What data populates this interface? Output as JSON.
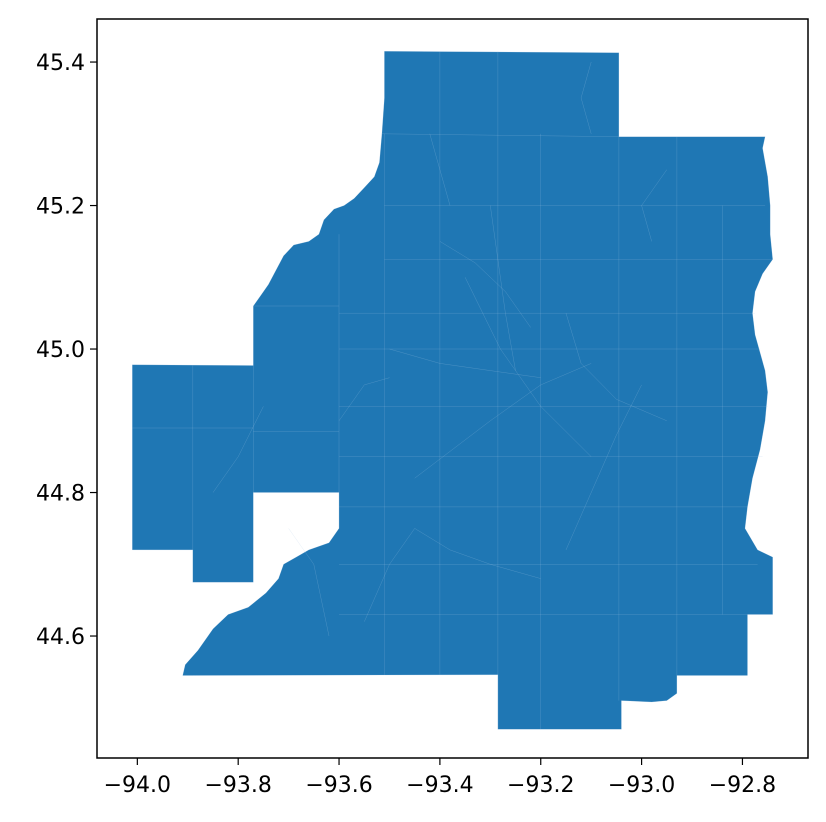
{
  "chart_data": {
    "type": "map",
    "fill_color": "#1f77b4",
    "boundary_color": "#a9c9e6",
    "xlim": [
      -94.08,
      -92.67
    ],
    "ylim": [
      44.43,
      45.46
    ],
    "x_ticks": [
      {
        "value": -94.0,
        "label": "−94.0"
      },
      {
        "value": -93.8,
        "label": "−93.8"
      },
      {
        "value": -93.6,
        "label": "−93.6"
      },
      {
        "value": -93.4,
        "label": "−93.4"
      },
      {
        "value": -93.2,
        "label": "−93.2"
      },
      {
        "value": -93.0,
        "label": "−93.0"
      },
      {
        "value": -92.8,
        "label": "−92.8"
      }
    ],
    "y_ticks": [
      {
        "value": 45.4,
        "label": "45.4"
      },
      {
        "value": 45.2,
        "label": "45.2"
      },
      {
        "value": 45.0,
        "label": "45.0"
      },
      {
        "value": 44.8,
        "label": "44.8"
      },
      {
        "value": 44.6,
        "label": "44.6"
      }
    ],
    "outline": [
      [
        -93.51,
        45.415
      ],
      [
        -93.045,
        45.413
      ],
      [
        -93.045,
        45.296
      ],
      [
        -92.755,
        45.296
      ],
      [
        -92.76,
        45.28
      ],
      [
        -92.75,
        45.24
      ],
      [
        -92.745,
        45.2
      ],
      [
        -92.745,
        45.16
      ],
      [
        -92.74,
        45.125
      ],
      [
        -92.76,
        45.105
      ],
      [
        -92.775,
        45.08
      ],
      [
        -92.78,
        45.05
      ],
      [
        -92.775,
        45.02
      ],
      [
        -92.765,
        44.995
      ],
      [
        -92.755,
        44.97
      ],
      [
        -92.75,
        44.94
      ],
      [
        -92.755,
        44.9
      ],
      [
        -92.765,
        44.86
      ],
      [
        -92.78,
        44.82
      ],
      [
        -92.79,
        44.78
      ],
      [
        -92.795,
        44.75
      ],
      [
        -92.77,
        44.72
      ],
      [
        -92.74,
        44.71
      ],
      [
        -92.74,
        44.63
      ],
      [
        -92.79,
        44.63
      ],
      [
        -92.79,
        44.545
      ],
      [
        -92.93,
        44.545
      ],
      [
        -92.93,
        44.52
      ],
      [
        -92.95,
        44.51
      ],
      [
        -92.98,
        44.508
      ],
      [
        -93.04,
        44.51
      ],
      [
        -93.04,
        44.47
      ],
      [
        -93.285,
        44.47
      ],
      [
        -93.285,
        44.546
      ],
      [
        -93.91,
        44.545
      ],
      [
        -93.905,
        44.56
      ],
      [
        -93.88,
        44.58
      ],
      [
        -93.85,
        44.61
      ],
      [
        -93.82,
        44.63
      ],
      [
        -93.78,
        44.64
      ],
      [
        -93.745,
        44.66
      ],
      [
        -93.72,
        44.68
      ],
      [
        -93.71,
        44.7
      ],
      [
        -93.685,
        44.71
      ],
      [
        -93.66,
        44.72
      ],
      [
        -93.62,
        44.73
      ],
      [
        -93.6,
        44.75
      ],
      [
        -93.6,
        44.8
      ],
      [
        -93.77,
        44.8
      ],
      [
        -93.77,
        44.675
      ],
      [
        -93.89,
        44.675
      ],
      [
        -93.89,
        44.72
      ],
      [
        -94.01,
        44.72
      ],
      [
        -94.01,
        44.978
      ],
      [
        -93.77,
        44.977
      ],
      [
        -93.77,
        45.06
      ],
      [
        -93.755,
        45.075
      ],
      [
        -93.74,
        45.09
      ],
      [
        -93.725,
        45.11
      ],
      [
        -93.71,
        45.13
      ],
      [
        -93.69,
        45.145
      ],
      [
        -93.66,
        45.15
      ],
      [
        -93.64,
        45.16
      ],
      [
        -93.63,
        45.18
      ],
      [
        -93.61,
        45.195
      ],
      [
        -93.59,
        45.2
      ],
      [
        -93.57,
        45.21
      ],
      [
        -93.55,
        45.225
      ],
      [
        -93.53,
        45.24
      ],
      [
        -93.52,
        45.26
      ],
      [
        -93.515,
        45.3
      ],
      [
        -93.51,
        45.35
      ]
    ],
    "inner_lines": [
      [
        [
          -93.77,
          44.8
        ],
        [
          -93.6,
          44.8
        ]
      ],
      [
        [
          -93.77,
          44.8
        ],
        [
          -93.77,
          44.977
        ]
      ],
      [
        [
          -93.89,
          44.72
        ],
        [
          -93.89,
          44.977
        ]
      ],
      [
        [
          -94.01,
          44.89
        ],
        [
          -93.77,
          44.89
        ]
      ],
      [
        [
          -93.77,
          44.885
        ],
        [
          -93.6,
          44.885
        ]
      ],
      [
        [
          -93.6,
          44.9
        ],
        [
          -93.55,
          44.95
        ],
        [
          -93.5,
          44.96
        ]
      ],
      [
        [
          -93.515,
          45.3
        ],
        [
          -93.045,
          45.296
        ]
      ],
      [
        [
          -93.51,
          45.2
        ],
        [
          -92.755,
          45.2
        ]
      ],
      [
        [
          -93.51,
          45.125
        ],
        [
          -92.74,
          45.125
        ]
      ],
      [
        [
          -93.77,
          45.06
        ],
        [
          -93.6,
          45.06
        ]
      ],
      [
        [
          -93.6,
          44.75
        ],
        [
          -93.6,
          45.16
        ]
      ],
      [
        [
          -93.51,
          44.546
        ],
        [
          -93.51,
          45.3
        ]
      ],
      [
        [
          -93.4,
          44.546
        ],
        [
          -93.4,
          45.415
        ]
      ],
      [
        [
          -93.285,
          44.47
        ],
        [
          -93.285,
          45.415
        ]
      ],
      [
        [
          -93.2,
          44.47
        ],
        [
          -93.2,
          45.3
        ]
      ],
      [
        [
          -93.045,
          44.51
        ],
        [
          -93.045,
          45.296
        ]
      ],
      [
        [
          -92.93,
          44.545
        ],
        [
          -92.93,
          45.296
        ]
      ],
      [
        [
          -92.84,
          44.63
        ],
        [
          -92.84,
          45.2
        ]
      ],
      [
        [
          -93.6,
          44.63
        ],
        [
          -92.74,
          44.63
        ]
      ],
      [
        [
          -93.6,
          44.7
        ],
        [
          -92.77,
          44.7
        ]
      ],
      [
        [
          -93.6,
          44.78
        ],
        [
          -92.79,
          44.78
        ]
      ],
      [
        [
          -93.6,
          44.85
        ],
        [
          -92.76,
          44.85
        ]
      ],
      [
        [
          -93.6,
          44.92
        ],
        [
          -92.75,
          44.92
        ]
      ],
      [
        [
          -93.6,
          45.0
        ],
        [
          -92.765,
          45.0
        ]
      ],
      [
        [
          -93.6,
          45.05
        ],
        [
          -92.775,
          45.05
        ]
      ],
      [
        [
          -93.45,
          44.82
        ],
        [
          -93.3,
          44.9
        ],
        [
          -93.2,
          44.95
        ],
        [
          -93.1,
          44.98
        ]
      ],
      [
        [
          -93.35,
          45.1
        ],
        [
          -93.28,
          45.0
        ],
        [
          -93.2,
          44.92
        ],
        [
          -93.1,
          44.85
        ]
      ],
      [
        [
          -93.3,
          45.2
        ],
        [
          -93.27,
          45.05
        ],
        [
          -93.25,
          44.97
        ]
      ],
      [
        [
          -93.15,
          45.05
        ],
        [
          -93.12,
          44.98
        ],
        [
          -93.05,
          44.93
        ],
        [
          -92.95,
          44.9
        ]
      ],
      [
        [
          -93.0,
          44.95
        ],
        [
          -93.05,
          44.88
        ],
        [
          -93.1,
          44.8
        ],
        [
          -93.15,
          44.72
        ]
      ],
      [
        [
          -93.5,
          45.0
        ],
        [
          -93.4,
          44.98
        ],
        [
          -93.3,
          44.97
        ],
        [
          -93.2,
          44.96
        ]
      ],
      [
        [
          -93.45,
          44.75
        ],
        [
          -93.38,
          44.72
        ],
        [
          -93.3,
          44.7
        ],
        [
          -93.2,
          44.68
        ]
      ],
      [
        [
          -93.4,
          45.15
        ],
        [
          -93.33,
          45.12
        ],
        [
          -93.27,
          45.08
        ],
        [
          -93.22,
          45.03
        ]
      ],
      [
        [
          -92.95,
          45.25
        ],
        [
          -93.0,
          45.2
        ],
        [
          -92.98,
          45.15
        ]
      ],
      [
        [
          -93.1,
          45.3
        ],
        [
          -93.12,
          45.35
        ],
        [
          -93.1,
          45.4
        ]
      ],
      [
        [
          -93.42,
          45.3
        ],
        [
          -93.4,
          45.25
        ],
        [
          -93.38,
          45.2
        ]
      ],
      [
        [
          -93.7,
          44.75
        ],
        [
          -93.65,
          44.7
        ],
        [
          -93.62,
          44.6
        ]
      ],
      [
        [
          -93.85,
          44.8
        ],
        [
          -93.8,
          44.85
        ],
        [
          -93.75,
          44.92
        ]
      ],
      [
        [
          -93.55,
          44.62
        ],
        [
          -93.5,
          44.7
        ],
        [
          -93.45,
          44.75
        ]
      ]
    ]
  }
}
